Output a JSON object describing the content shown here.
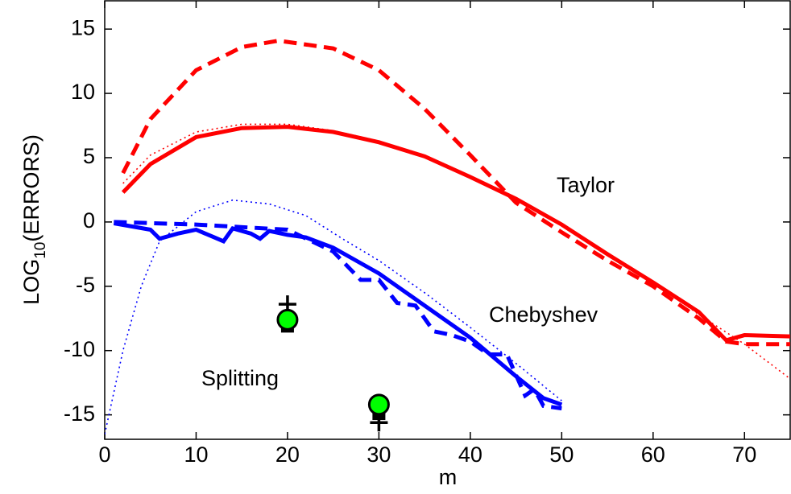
{
  "chart_data": {
    "type": "line",
    "ylabel": [
      "LOG",
      "10",
      "(ERRORS)"
    ],
    "xlabel": "m",
    "annotations": [
      "Taylor",
      "Chebyshev",
      "Splitting"
    ],
    "xlim": [
      0,
      75
    ],
    "ylim": [
      -16.9,
      17.2
    ],
    "xticks": [
      0,
      10,
      20,
      30,
      40,
      50,
      60,
      70
    ],
    "yticks": [
      -15,
      -10,
      -5,
      0,
      5,
      10,
      15
    ],
    "series": [
      {
        "color": "#ff0000",
        "style": "dashed",
        "x": [
          2,
          5,
          10,
          15,
          19,
          25,
          30,
          35,
          40,
          45,
          50,
          55,
          60,
          65,
          68,
          70,
          75
        ],
        "values": [
          3.8,
          8,
          11.8,
          13.6,
          14.1,
          13.5,
          11.8,
          8.8,
          5.2,
          1.5,
          -0.8,
          -3,
          -5,
          -7.5,
          -9.3,
          -9.5,
          -9.5
        ]
      },
      {
        "color": "#ff0000",
        "style": "dotted",
        "x": [
          2,
          5,
          10,
          15,
          20,
          25,
          30,
          35,
          40,
          45,
          50,
          55,
          60,
          65,
          70,
          75
        ],
        "values": [
          3,
          5.2,
          7,
          7.6,
          7.6,
          7.1,
          6.3,
          5.2,
          3.6,
          1.9,
          -0.1,
          -2.4,
          -4.6,
          -7.2,
          -9.5,
          -12.2
        ]
      },
      {
        "color": "#ff0000",
        "style": "solid",
        "x": [
          2,
          5,
          10,
          15,
          20,
          25,
          30,
          35,
          40,
          45,
          50,
          55,
          60,
          65,
          68,
          70,
          75
        ],
        "values": [
          2.3,
          4.5,
          6.6,
          7.3,
          7.4,
          7,
          6.2,
          5.1,
          3.5,
          1.8,
          -0.2,
          -2.5,
          -4.7,
          -7,
          -9.2,
          -8.8,
          -8.9
        ]
      },
      {
        "color": "#0000ff",
        "style": "dotted",
        "x": [
          0,
          2,
          4,
          6,
          10,
          14,
          18,
          22,
          26,
          30,
          35,
          40,
          45,
          50
        ],
        "values": [
          -16.5,
          -10,
          -5,
          -1.5,
          0.8,
          1.7,
          1.4,
          0.5,
          -1.3,
          -3,
          -5.5,
          -8.2,
          -11,
          -13.9
        ]
      },
      {
        "color": "#0000ff",
        "style": "dashed",
        "x": [
          1,
          10,
          20,
          25,
          28,
          30,
          32,
          34,
          36,
          38,
          40,
          41,
          42,
          44,
          45,
          46,
          47,
          48,
          50
        ],
        "values": [
          0,
          -0.2,
          -0.6,
          -2.3,
          -4.5,
          -4.5,
          -6.3,
          -6.5,
          -8.5,
          -8.8,
          -9.3,
          -9.8,
          -10.3,
          -10.3,
          -11.9,
          -13.5,
          -13,
          -14.3,
          -14.5
        ]
      },
      {
        "color": "#0000ff",
        "style": "solid",
        "x": [
          1,
          5,
          6,
          8,
          10,
          12,
          13,
          14,
          16,
          17,
          18,
          20,
          22,
          25,
          30,
          35,
          40,
          45,
          48,
          50
        ],
        "values": [
          -0.1,
          -0.6,
          -1.3,
          -0.9,
          -0.6,
          -1.2,
          -1.5,
          -0.5,
          -0.9,
          -1.3,
          -0.7,
          -1,
          -1.2,
          -2,
          -4,
          -6.5,
          -9,
          -12,
          -13.7,
          -14.2
        ]
      },
      {
        "color": "#000000",
        "style": "plus",
        "x": [
          20,
          30
        ],
        "values": [
          -6.4,
          -15.6
        ]
      },
      {
        "color": "#000000",
        "style": "square",
        "x": [
          20,
          30
        ],
        "values": [
          -8.1,
          -14.9
        ]
      },
      {
        "color": "#00ff00",
        "style": "circle",
        "x": [
          20,
          30
        ],
        "values": [
          -7.6,
          -14.2
        ]
      }
    ]
  }
}
